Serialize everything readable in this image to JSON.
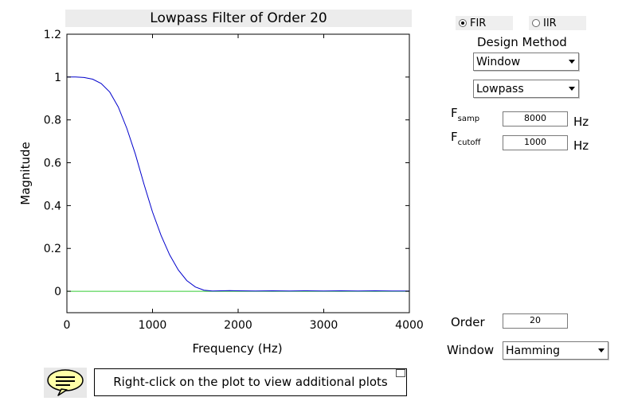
{
  "plot": {
    "title": "Lowpass Filter of Order 20",
    "xlabel": "Frequency (Hz)",
    "ylabel": "Magnitude",
    "line_color": "#0000cc",
    "zero_line_color": "#33cc33"
  },
  "chart_data": {
    "type": "line",
    "title": "Lowpass Filter of Order 20",
    "xlabel": "Frequency (Hz)",
    "ylabel": "Magnitude",
    "xlim": [
      0,
      4000
    ],
    "ylim": [
      -0.1,
      1.2
    ],
    "xticks": [
      "0",
      "1000",
      "2000",
      "3000",
      "4000"
    ],
    "yticks": [
      "0",
      "0.2",
      "0.4",
      "0.6",
      "0.8",
      "1",
      "1.2"
    ],
    "grid": false,
    "series": [
      {
        "x": [
          0,
          100,
          200,
          300,
          400,
          500,
          600,
          700,
          800,
          900,
          1000,
          1100,
          1200,
          1300,
          1400,
          1500,
          1600,
          1700,
          1800,
          1900,
          2000,
          2200,
          2400,
          2600,
          2800,
          3000,
          3200,
          3400,
          3600,
          3800,
          4000
        ],
        "values": [
          1.0,
          1.0,
          0.998,
          0.99,
          0.97,
          0.93,
          0.86,
          0.76,
          0.64,
          0.5,
          0.37,
          0.26,
          0.17,
          0.1,
          0.05,
          0.02,
          0.005,
          0.001,
          0.002,
          0.003,
          0.002,
          0.001,
          0.002,
          0.001,
          0.002,
          0.001,
          0.002,
          0.001,
          0.002,
          0.001,
          0.001
        ]
      },
      {
        "x": [
          0,
          4000
        ],
        "values": [
          0,
          0
        ]
      }
    ]
  },
  "controls": {
    "fir_label": "FIR",
    "iir_label": "IIR",
    "design_method_label": "Design Method",
    "design_method_value": "Window",
    "filter_type_value": "Lowpass",
    "fsamp_main": "F",
    "fsamp_sub": "samp",
    "fsamp_value": "8000",
    "fcutoff_main": "F",
    "fcutoff_sub": "cutoff",
    "fcutoff_value": "1000",
    "hz_unit": "Hz",
    "order_label": "Order",
    "order_value": "20",
    "window_label": "Window",
    "window_value": "Hamming"
  },
  "footer": {
    "hint": "Right-click on the plot to view additional plots"
  }
}
